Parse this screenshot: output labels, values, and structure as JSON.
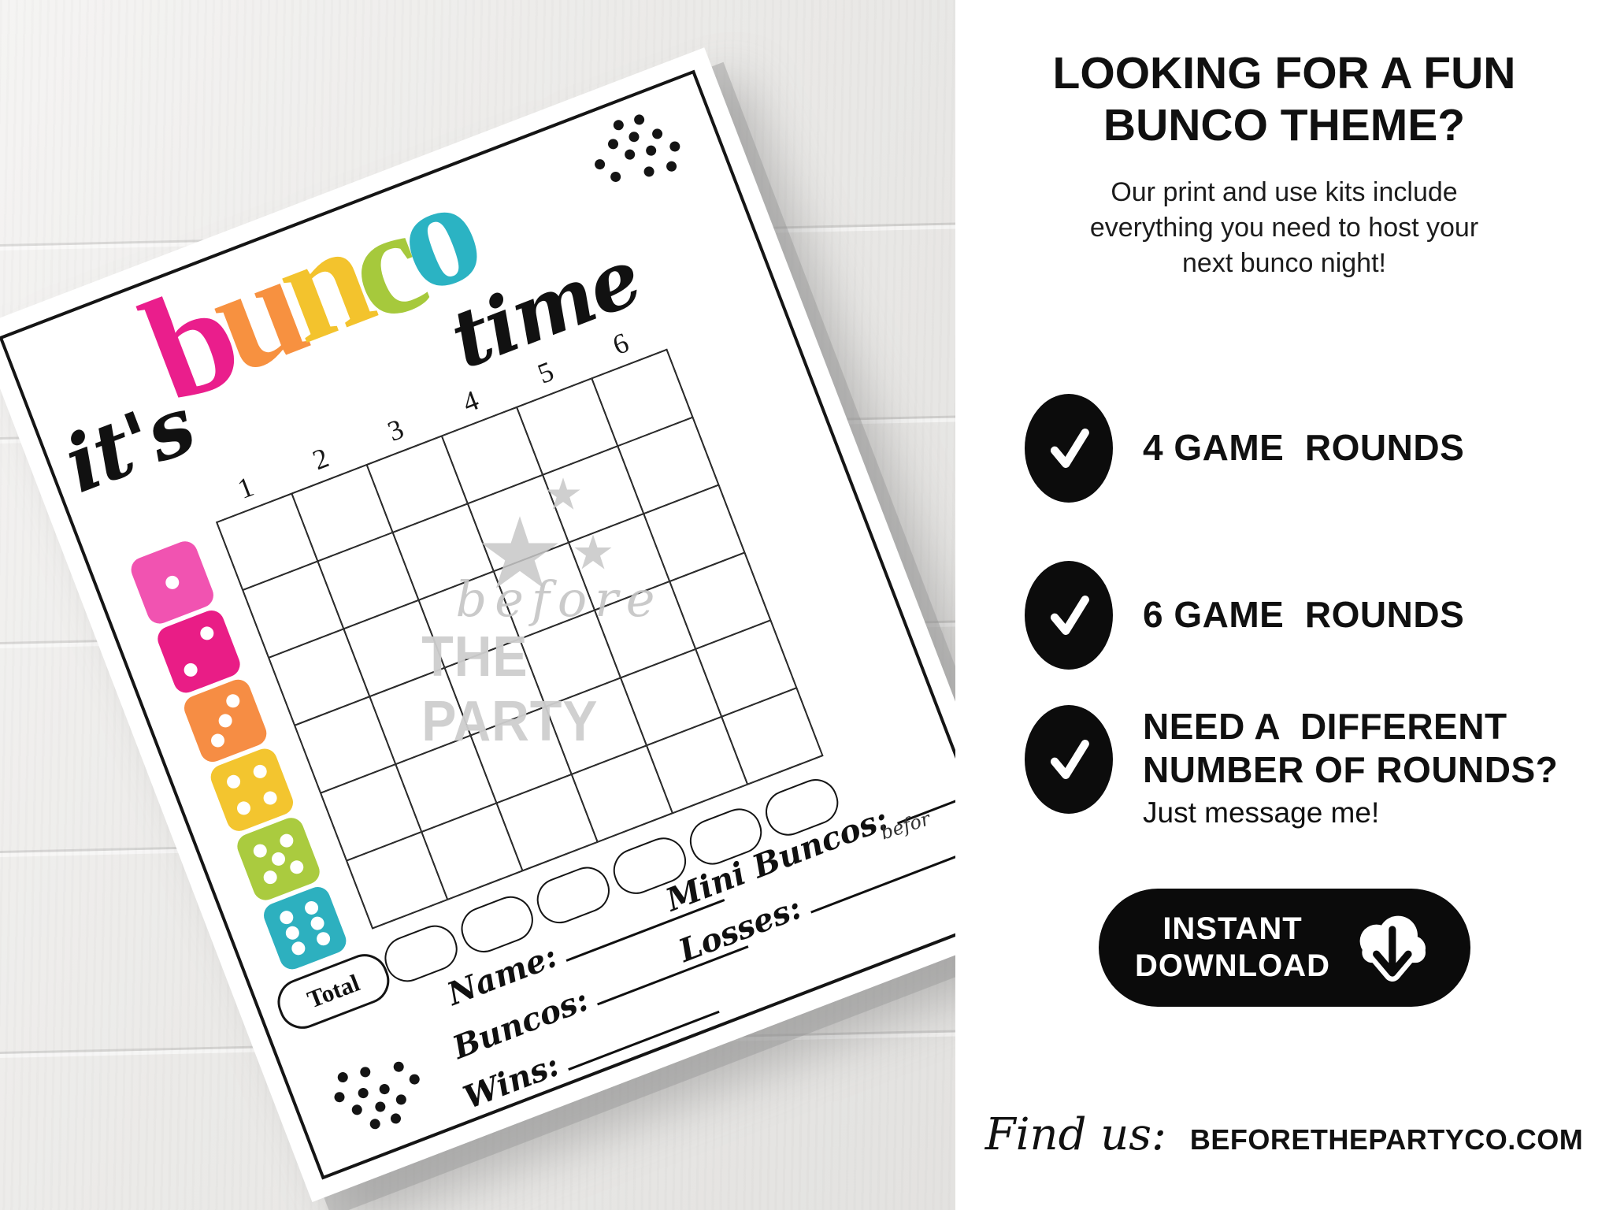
{
  "scorecard": {
    "title": {
      "its": "it's",
      "time": "time",
      "bunco_letters": [
        {
          "letter": "b",
          "color": "#ea1e8c"
        },
        {
          "letter": "u",
          "color": "#f79140"
        },
        {
          "letter": "n",
          "color": "#f3c32d"
        },
        {
          "letter": "c",
          "color": "#a6c93c"
        },
        {
          "letter": "o",
          "color": "#2bb3c3"
        }
      ]
    },
    "column_numbers": [
      "1",
      "2",
      "3",
      "4",
      "5",
      "6"
    ],
    "grid_rows": 6,
    "grid_cols": 6,
    "dice": [
      {
        "value": 1,
        "color": "#f153b1"
      },
      {
        "value": 2,
        "color": "#e91d86"
      },
      {
        "value": 3,
        "color": "#f68d44"
      },
      {
        "value": 4,
        "color": "#f3c52f"
      },
      {
        "value": 5,
        "color": "#aacb3f"
      },
      {
        "value": 6,
        "color": "#2db0bf"
      }
    ],
    "total_label": "Total",
    "fields_left": [
      "Name:",
      "Buncos:",
      "Wins:"
    ],
    "fields_right": [
      "Mini Buncos:",
      "Losses:"
    ],
    "edge_watermark": "befor",
    "watermark": {
      "script": "before",
      "caps": "THE PARTY"
    }
  },
  "panel": {
    "heading": "LOOKING FOR A FUN\nBUNCO THEME?",
    "intro": "Our print and use kits include\neverything you need to host your\nnext bunco night!",
    "bullets": [
      {
        "label": "4 GAME  ROUNDS",
        "sub": ""
      },
      {
        "label": "6 GAME  ROUNDS",
        "sub": ""
      },
      {
        "label": "NEED A  DIFFERENT\nNUMBER OF ROUNDS?",
        "sub": "Just message me!"
      }
    ],
    "button": {
      "label": "INSTANT\nDOWNLOAD"
    },
    "footer": {
      "find_us": "Find us:",
      "website": "BEFORETHEPARTYCO.COM"
    }
  },
  "colors": {
    "ink": "#151515",
    "panel_bg": "#ffffff",
    "accent_black": "#0b0b0b",
    "watermark_gray": "#c7c7c7"
  }
}
